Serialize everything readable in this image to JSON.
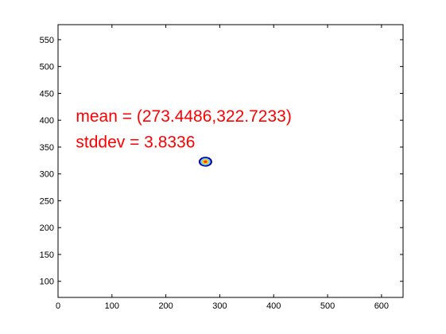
{
  "chart_data": {
    "type": "scatter",
    "title": "",
    "xlabel": "",
    "ylabel": "",
    "xlim": [
      0,
      640
    ],
    "ylim": [
      70,
      578
    ],
    "xticks": [
      0,
      100,
      200,
      300,
      400,
      500,
      600
    ],
    "yticks": [
      100,
      150,
      200,
      250,
      300,
      350,
      400,
      450,
      500,
      550
    ],
    "grid": false,
    "point": {
      "x": 273.4486,
      "y": 322.7233
    },
    "blob_rings": [
      {
        "radius": 10,
        "color": "#0000aa"
      },
      {
        "radius": 7.5,
        "color": "#66ccff"
      },
      {
        "radius": 5,
        "color": "#ffcc00"
      },
      {
        "radius": 2.5,
        "color": "#ff3300"
      }
    ],
    "annotations": [
      {
        "text": "mean = (273.4486,322.7233)",
        "x": 33,
        "y": 397,
        "color": "#ff0000"
      },
      {
        "text": "stddev = 3.8336",
        "x": 33,
        "y": 349,
        "color": "#ff0000"
      }
    ]
  }
}
